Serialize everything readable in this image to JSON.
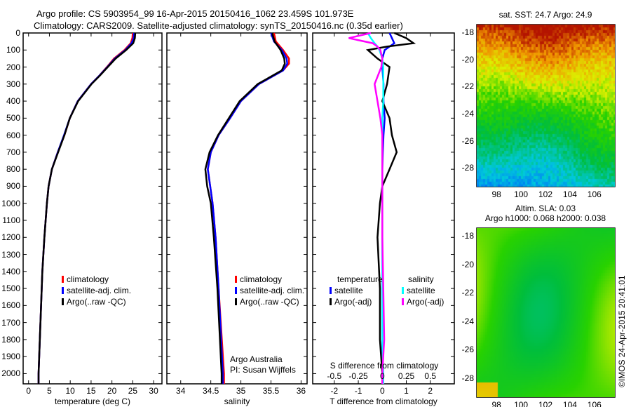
{
  "title_line1": "Argo profile: CS 5903954_99 16-Apr-2015 20150416_1062 23.459S 101.973E",
  "title_line2": "Climatology: CARS2009. Satellite-adjusted climatology: synTS_20150416.nc (0.35d earlier)",
  "colors": {
    "climatology": "#ff0000",
    "satellite": "#0000ff",
    "argo": "#000000",
    "sal_sat": "#00ffff",
    "sal_argo": "#ff00ff"
  },
  "chart_data": [
    {
      "type": "line",
      "name": "temperature",
      "xlabel": "temperature (deg C)",
      "xlim": [
        -1.3,
        32
      ],
      "ylim": [
        2060,
        0
      ],
      "xticks": [
        "0",
        "5",
        "10",
        "15",
        "20",
        "25",
        "30"
      ],
      "xtick_values": [
        0,
        5,
        10,
        15,
        20,
        25,
        30
      ],
      "yticks": [
        "0",
        "100",
        "200",
        "300",
        "400",
        "500",
        "600",
        "700",
        "800",
        "900",
        "1000",
        "1100",
        "1200",
        "1300",
        "1400",
        "1500",
        "1600",
        "1700",
        "1800",
        "1900",
        "2000"
      ],
      "legend": [
        "climatology",
        "satellite-adj. clim.",
        "Argo(..raw -QC)"
      ],
      "depth": [
        0,
        30,
        60,
        100,
        150,
        200,
        250,
        300,
        400,
        500,
        600,
        700,
        800,
        900,
        1000,
        1200,
        1400,
        1600,
        1800,
        2000,
        2060
      ],
      "series": [
        {
          "name": "climatology",
          "values": [
            25.0,
            24.9,
            24.5,
            23.0,
            20.5,
            18.8,
            17.0,
            15.0,
            11.8,
            9.9,
            8.6,
            7.0,
            5.6,
            4.8,
            4.4,
            3.8,
            3.3,
            3.0,
            2.7,
            2.4,
            2.4
          ]
        },
        {
          "name": "satellite",
          "values": [
            25.3,
            25.2,
            24.7,
            23.2,
            20.7,
            18.9,
            17.0,
            15.0,
            11.8,
            9.9,
            8.5,
            7.0,
            5.6,
            4.8,
            4.4,
            3.8,
            3.3,
            3.0,
            2.7,
            2.4,
            2.4
          ]
        },
        {
          "name": "argo",
          "values": [
            25.6,
            25.5,
            25.1,
            23.4,
            20.9,
            19.0,
            17.1,
            15.1,
            11.9,
            9.9,
            8.6,
            7.1,
            5.6,
            4.8,
            4.4,
            3.8,
            3.3,
            3.0,
            2.7,
            2.4,
            2.4
          ]
        }
      ]
    },
    {
      "type": "line",
      "name": "salinity",
      "xlabel": "salinity",
      "xlim": [
        33.77,
        36.1
      ],
      "ylim": [
        2060,
        0
      ],
      "xticks": [
        "34",
        "34.5",
        "35",
        "35.5",
        "36"
      ],
      "xtick_values": [
        34,
        34.5,
        35,
        35.5,
        36
      ],
      "legend": [
        "climatology",
        "satellite-adj. clim.",
        "Argo(..raw -QC)"
      ],
      "annotation": [
        "Argo Australia",
        "PI: Susan Wijffels"
      ],
      "depth": [
        0,
        50,
        100,
        150,
        180,
        220,
        300,
        400,
        500,
        600,
        700,
        800,
        900,
        1000,
        1200,
        1500,
        2000,
        2060
      ],
      "series": [
        {
          "name": "climatology",
          "values": [
            35.55,
            35.58,
            35.7,
            35.8,
            35.8,
            35.7,
            35.3,
            35.0,
            34.82,
            34.63,
            34.5,
            34.45,
            34.49,
            34.53,
            34.58,
            34.63,
            34.72,
            34.72
          ]
        },
        {
          "name": "satellite",
          "values": [
            35.5,
            35.55,
            35.68,
            35.76,
            35.77,
            35.7,
            35.3,
            35.0,
            34.82,
            34.63,
            34.5,
            34.45,
            34.49,
            34.53,
            34.58,
            34.63,
            34.7,
            34.7
          ]
        },
        {
          "name": "argo",
          "values": [
            35.52,
            35.56,
            35.66,
            35.72,
            35.73,
            35.68,
            35.28,
            34.98,
            34.8,
            34.62,
            34.48,
            34.41,
            34.44,
            34.5,
            34.55,
            34.61,
            34.68,
            34.68
          ]
        }
      ]
    },
    {
      "type": "line",
      "name": "difference",
      "xlabel": "T difference from climatology",
      "x2label": "S difference from climatology",
      "xlim": [
        -2.9,
        3.0
      ],
      "ylim": [
        2060,
        0
      ],
      "xticks": [
        "-2",
        "-1",
        "0",
        "1",
        "2"
      ],
      "xtick_values": [
        -2,
        -1,
        0,
        1,
        2
      ],
      "x2ticks": [
        "-0.5",
        "-0.25",
        "0",
        "0.25",
        "0.5"
      ],
      "x2tick_values": [
        -0.5,
        -0.25,
        0,
        0.25,
        0.5
      ],
      "legend_titles": [
        "temperature",
        "salinity"
      ],
      "legend": [
        "satellite",
        "Argo(-adj)",
        "satellite",
        "Argo(-adj)"
      ],
      "depth": [
        0,
        30,
        60,
        80,
        100,
        150,
        200,
        300,
        400,
        500,
        600,
        700,
        800,
        900,
        1000,
        1200,
        1500,
        1800,
        2000,
        2060
      ],
      "series": [
        {
          "name": "T satellite",
          "axis": "T",
          "values": [
            0.3,
            0.4,
            0.5,
            0.3,
            0.1,
            0.0,
            0.0,
            0.05,
            0.05,
            0.1,
            0.05,
            0.02,
            0.0,
            0.0,
            0.0,
            0.0,
            0.0,
            0.0,
            0.0,
            0.0
          ]
        },
        {
          "name": "T Argo(-adj)",
          "axis": "T",
          "values": [
            0.5,
            1.0,
            1.3,
            0.2,
            -0.6,
            -0.2,
            0.3,
            0.2,
            0.0,
            0.3,
            0.4,
            0.6,
            0.3,
            0.0,
            -0.1,
            -0.2,
            -0.1,
            -0.1,
            0.0,
            0.0
          ]
        },
        {
          "name": "S satellite",
          "axis": "S",
          "values": [
            -0.15,
            -0.12,
            -0.08,
            -0.05,
            -0.03,
            0.0,
            0.01,
            0.01,
            0.01,
            0.0,
            0.0,
            0.0,
            0.0,
            0.0,
            0.0,
            0.0,
            0.0,
            0.0,
            0.01,
            0.01
          ]
        },
        {
          "name": "S Argo(-adj)",
          "axis": "S",
          "values": [
            -0.12,
            -0.35,
            -0.1,
            -0.05,
            -0.02,
            0.0,
            -0.01,
            -0.08,
            -0.05,
            -0.02,
            0.0,
            0.0,
            0.0,
            0.0,
            0.0,
            0.0,
            0.01,
            0.02,
            0.0,
            0.0
          ]
        }
      ]
    },
    {
      "type": "heatmap",
      "name": "sst_map",
      "title": "sat. SST: 24.7 Argo: 24.9",
      "xticks": [
        "98",
        "100",
        "102",
        "104",
        "106"
      ],
      "yticks": [
        "-18",
        "-20",
        "-22",
        "-24",
        "-26",
        "-28"
      ]
    },
    {
      "type": "heatmap",
      "name": "sla_map",
      "title_line1": "Altim. SLA: 0.03",
      "title_line2": "Argo h1000: 0.068 h2000: 0.038",
      "xticks": [
        "98",
        "100",
        "102",
        "104",
        "106"
      ],
      "yticks": [
        "-18",
        "-20",
        "-22",
        "-24",
        "-26",
        "-28"
      ]
    }
  ],
  "credit": "©IMOS 24-Apr-2015 20:41:01"
}
